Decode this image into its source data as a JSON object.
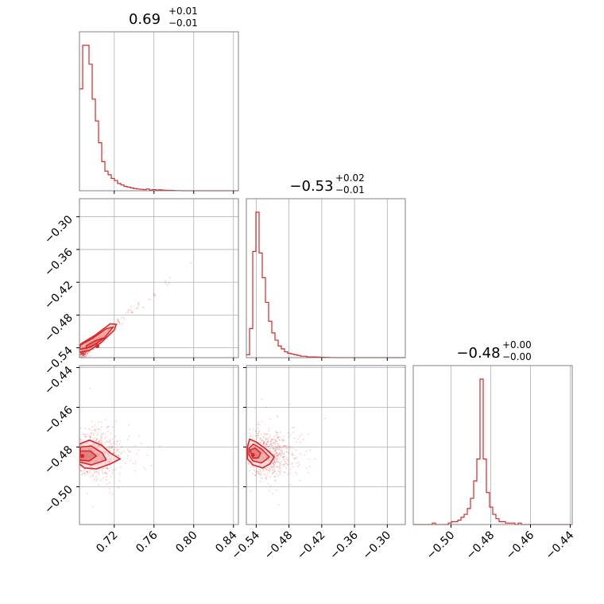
{
  "colors": {
    "series": "#d62728",
    "grid": "#b0b0b0",
    "frame": "#808080",
    "fill_inner": "#e88a8b",
    "fill_outer": "#f6cfcf"
  },
  "chart_data": {
    "type": "corner",
    "grid": true,
    "parameters": [
      {
        "title": "0.69",
        "title_plus": "+0.01",
        "title_minus": "−0.01",
        "range": [
          0.685,
          0.845
        ],
        "ticks": [
          0.72,
          0.76,
          0.8,
          0.84
        ],
        "tick_labels": [
          "0.72",
          "0.76",
          "0.80",
          "0.84"
        ]
      },
      {
        "title": "−0.53",
        "title_plus": "+0.02",
        "title_minus": "−0.01",
        "range": [
          -0.558,
          -0.267
        ],
        "ticks": [
          -0.54,
          -0.48,
          -0.42,
          -0.36,
          -0.3
        ],
        "tick_labels": [
          "−0.54",
          "−0.48",
          "−0.42",
          "−0.36",
          "−0.30"
        ]
      },
      {
        "title": "−0.48",
        "title_plus": "+0.00",
        "title_minus": "−0.00",
        "range": [
          -0.519,
          -0.439
        ],
        "ticks": [
          -0.5,
          -0.48,
          -0.46,
          -0.44
        ],
        "tick_labels": [
          "−0.50",
          "−0.48",
          "−0.46",
          "−0.44"
        ]
      }
    ],
    "histograms": [
      {
        "param": 0,
        "bin_start": 0.685,
        "bin_width": 0.0032,
        "counts": [
          0.7,
          1.0,
          1.0,
          0.87,
          0.63,
          0.48,
          0.33,
          0.2,
          0.135,
          0.11,
          0.085,
          0.07,
          0.05,
          0.04,
          0.03,
          0.025,
          0.02,
          0.015,
          0.012,
          0.01,
          0.008,
          0.012,
          0.005,
          0.008,
          0.005,
          0.006,
          0.004,
          0.003,
          0.003,
          0.002,
          0.001,
          0.001,
          0,
          0,
          0,
          0,
          0,
          0,
          0,
          0,
          0,
          0,
          0,
          0,
          0,
          0,
          0,
          0,
          0,
          0
        ]
      },
      {
        "param": 1,
        "bin_start": -0.558,
        "bin_width": 0.00582,
        "counts": [
          0.02,
          0.2,
          0.73,
          1.0,
          0.72,
          0.55,
          0.38,
          0.25,
          0.17,
          0.12,
          0.08,
          0.06,
          0.04,
          0.03,
          0.025,
          0.02,
          0.015,
          0.01,
          0.01,
          0.005,
          0.005,
          0.005,
          0.004,
          0.003,
          0.002,
          0.002,
          0.001,
          0.001,
          0,
          0,
          0,
          0,
          0,
          0,
          0,
          0,
          0,
          0,
          0,
          0,
          0,
          0,
          0,
          0,
          0,
          0,
          0,
          0,
          0,
          0
        ]
      },
      {
        "param": 2,
        "bin_start": -0.519,
        "bin_width": 0.0016,
        "counts": [
          0,
          0,
          0,
          0,
          0,
          0,
          0.01,
          0,
          0,
          0,
          0,
          0.01,
          0.02,
          0.02,
          0.03,
          0.05,
          0.07,
          0.11,
          0.18,
          0.3,
          0.45,
          1.0,
          0.45,
          0.22,
          0.12,
          0.07,
          0.04,
          0.02,
          0.02,
          0.01,
          0.01,
          0.01,
          0,
          0.01,
          0,
          0,
          0,
          0,
          0,
          0,
          0,
          0,
          0,
          0,
          0,
          0,
          0,
          0,
          0,
          0
        ]
      }
    ],
    "contour_panels": [
      {
        "x_param": 0,
        "y_param": 1,
        "samples": {
          "center": [
            0.695,
            -0.538
          ],
          "slope": 1.5,
          "n": 650,
          "spread": 0.005
        },
        "peak": [
          0.703,
          -0.537
        ],
        "contours": [
          {
            "level": 1,
            "points": [
              [
                0.685,
                -0.548
              ],
              [
                0.695,
                -0.545
              ],
              [
                0.707,
                -0.53
              ],
              [
                0.72,
                -0.508
              ],
              [
                0.722,
                -0.497
              ],
              [
                0.716,
                -0.496
              ],
              [
                0.7,
                -0.518
              ],
              [
                0.688,
                -0.531
              ],
              [
                0.685,
                -0.535
              ]
            ]
          },
          {
            "level": 2,
            "points": [
              [
                0.685,
                -0.543
              ],
              [
                0.697,
                -0.538
              ],
              [
                0.71,
                -0.522
              ],
              [
                0.719,
                -0.502
              ],
              [
                0.712,
                -0.505
              ],
              [
                0.698,
                -0.523
              ],
              [
                0.686,
                -0.535
              ]
            ]
          },
          {
            "level": 3,
            "points": [
              [
                0.692,
                -0.541
              ],
              [
                0.702,
                -0.533
              ],
              [
                0.709,
                -0.522
              ],
              [
                0.7,
                -0.528
              ],
              [
                0.692,
                -0.536
              ]
            ]
          }
        ]
      },
      {
        "x_param": 0,
        "y_param": 2,
        "samples": {
          "center": [
            0.7,
            -0.4835
          ],
          "spread_x": 0.012,
          "spread_y": 0.0055,
          "n": 700
        },
        "peak": [
          0.688,
          -0.4845
        ],
        "contours": [
          {
            "level": 1,
            "points": [
              [
                0.685,
                -0.4885
              ],
              [
                0.69,
                -0.4905
              ],
              [
                0.702,
                -0.491
              ],
              [
                0.716,
                -0.4885
              ],
              [
                0.726,
                -0.486
              ],
              [
                0.716,
                -0.483
              ],
              [
                0.707,
                -0.479
              ],
              [
                0.695,
                -0.4765
              ],
              [
                0.685,
                -0.4785
              ]
            ]
          },
          {
            "level": 2,
            "points": [
              [
                0.685,
                -0.4875
              ],
              [
                0.697,
                -0.489
              ],
              [
                0.712,
                -0.4865
              ],
              [
                0.708,
                -0.483
              ],
              [
                0.697,
                -0.4795
              ],
              [
                0.686,
                -0.48
              ]
            ]
          },
          {
            "level": 3,
            "points": [
              [
                0.685,
                -0.4865
              ],
              [
                0.695,
                -0.487
              ],
              [
                0.702,
                -0.4845
              ],
              [
                0.696,
                -0.482
              ],
              [
                0.686,
                -0.482
              ]
            ]
          }
        ]
      },
      {
        "x_param": 1,
        "y_param": 2,
        "samples": {
          "center": [
            -0.52,
            -0.4835
          ],
          "spread_x": 0.022,
          "spread_y": 0.0055,
          "n": 700
        },
        "peak": [
          -0.546,
          -0.484
        ],
        "contours": [
          {
            "level": 1,
            "points": [
              [
                -0.556,
                -0.48
              ],
              [
                -0.552,
                -0.476
              ],
              [
                -0.54,
                -0.4775
              ],
              [
                -0.522,
                -0.481
              ],
              [
                -0.507,
                -0.485
              ],
              [
                -0.515,
                -0.4885
              ],
              [
                -0.528,
                -0.4905
              ],
              [
                -0.546,
                -0.489
              ],
              [
                -0.556,
                -0.486
              ]
            ]
          },
          {
            "level": 2,
            "points": [
              [
                -0.553,
                -0.4805
              ],
              [
                -0.545,
                -0.4785
              ],
              [
                -0.53,
                -0.481
              ],
              [
                -0.516,
                -0.485
              ],
              [
                -0.53,
                -0.488
              ],
              [
                -0.546,
                -0.487
              ],
              [
                -0.553,
                -0.484
              ]
            ]
          },
          {
            "level": 3,
            "points": [
              [
                -0.551,
                -0.4815
              ],
              [
                -0.542,
                -0.4805
              ],
              [
                -0.532,
                -0.483
              ],
              [
                -0.536,
                -0.4855
              ],
              [
                -0.546,
                -0.4855
              ]
            ]
          }
        ]
      }
    ]
  }
}
